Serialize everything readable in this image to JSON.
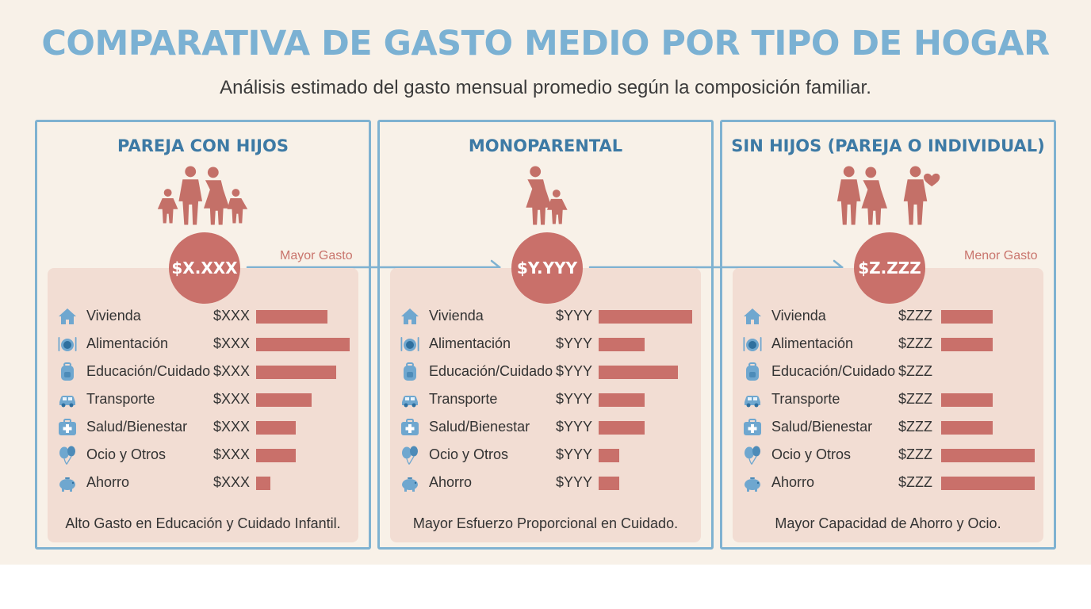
{
  "title": "COMPARATIVA DE GASTO MEDIO POR TIPO DE HOGAR",
  "subtitle": "Análisis estimado del gasto mensual promedio según la composición familiar.",
  "colors": {
    "accent": "#7bb1d3",
    "bar": "#c9706a",
    "panel_border": "#7fb2d1",
    "card_bg": "#f2ddd3",
    "background": "#f8f1e8"
  },
  "panels": [
    {
      "title": "PAREJA CON HIJOS",
      "amount": "$X.XXX",
      "tag": "Mayor Gasto",
      "note": "Alto Gasto en Educación y Cuidado Infantil.",
      "items": [
        {
          "icon": "house-icon",
          "label": "Vivienda",
          "value": "$XXX",
          "level": 0.76
        },
        {
          "icon": "plate-cutlery-icon",
          "label": "Alimentación",
          "value": "$XXX",
          "level": 1.0
        },
        {
          "icon": "backpack-icon",
          "label": "Educación/Cuidado",
          "value": "$XXX",
          "level": 0.86
        },
        {
          "icon": "car-icon",
          "label": "Transporte",
          "value": "$XXX",
          "level": 0.59
        },
        {
          "icon": "medical-kit-icon",
          "label": "Salud/Bienestar",
          "value": "$XXX",
          "level": 0.42
        },
        {
          "icon": "balloons-icon",
          "label": "Ocio y Otros",
          "value": "$XXX",
          "level": 0.42
        },
        {
          "icon": "piggy-bank-icon",
          "label": "Ahorro",
          "value": "$XXX",
          "level": 0.15
        }
      ]
    },
    {
      "title": "MONOPARENTAL",
      "amount": "$Y.YYY",
      "tag": "",
      "note": "Mayor Esfuerzo Proporcional en Cuidado.",
      "items": [
        {
          "icon": "house-icon",
          "label": "Vivienda",
          "value": "$YYY",
          "level": 1.0
        },
        {
          "icon": "plate-cutlery-icon",
          "label": "Alimentación",
          "value": "$YYY",
          "level": 0.49
        },
        {
          "icon": "backpack-icon",
          "label": "Educación/Cuidado",
          "value": "$YYY",
          "level": 0.85
        },
        {
          "icon": "car-icon",
          "label": "Transporte",
          "value": "$YYY",
          "level": 0.49
        },
        {
          "icon": "medical-kit-icon",
          "label": "Salud/Bienestar",
          "value": "$YYY",
          "level": 0.49
        },
        {
          "icon": "balloons-icon",
          "label": "Ocio y Otros",
          "value": "$YYY",
          "level": 0.22
        },
        {
          "icon": "piggy-bank-icon",
          "label": "Ahorro",
          "value": "$YYY",
          "level": 0.22
        }
      ]
    },
    {
      "title": "SIN HIJOS (PAREJA O INDIVIDUAL)",
      "amount": "$Z.ZZZ",
      "tag": "Menor Gasto",
      "note": "Mayor Capacidad de Ahorro y Ocio.",
      "items": [
        {
          "icon": "house-icon",
          "label": "Vivienda",
          "value": "$ZZZ",
          "level": 0.55
        },
        {
          "icon": "plate-cutlery-icon",
          "label": "Alimentación",
          "value": "$ZZZ",
          "level": 0.55
        },
        {
          "icon": "backpack-icon",
          "label": "Educación/Cuidado",
          "value": "$ZZZ",
          "level": 0
        },
        {
          "icon": "car-icon",
          "label": "Transporte",
          "value": "$ZZZ",
          "level": 0.55
        },
        {
          "icon": "medical-kit-icon",
          "label": "Salud/Bienestar",
          "value": "$ZZZ",
          "level": 0.55
        },
        {
          "icon": "balloons-icon",
          "label": "Ocio y Otros",
          "value": "$ZZZ",
          "level": 1.0
        },
        {
          "icon": "piggy-bank-icon",
          "label": "Ahorro",
          "value": "$ZZZ",
          "level": 1.0
        }
      ]
    }
  ]
}
